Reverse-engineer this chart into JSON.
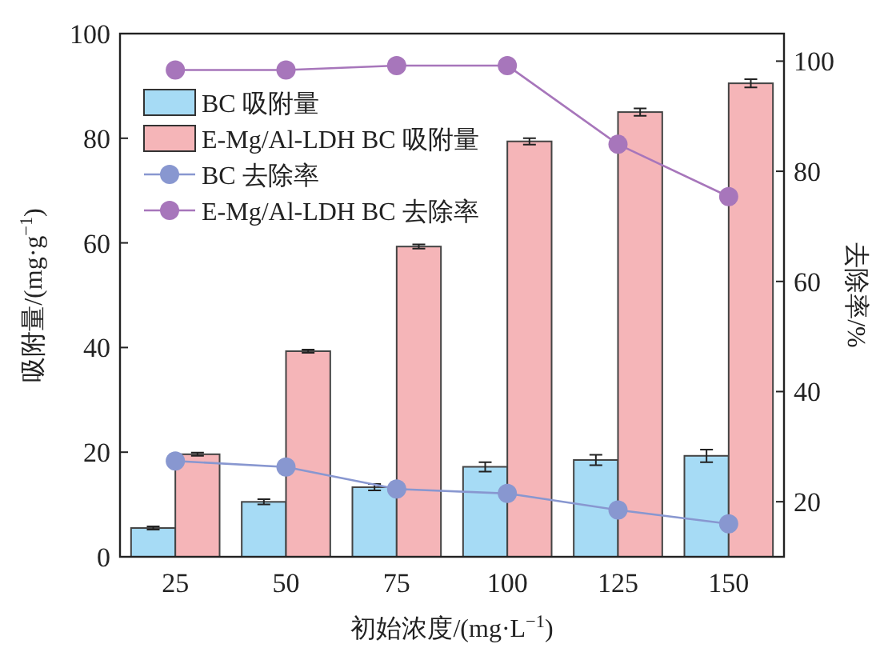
{
  "chart_data": {
    "type": "bar",
    "categories": [
      "25",
      "50",
      "75",
      "100",
      "125",
      "150"
    ],
    "xlabel": "初始浓度/(mg·L$^{−1}$)",
    "ylabel": "吸附量/(mg·g$^{−1}$)",
    "y2label": "去除率/%",
    "ylim": [
      0,
      100
    ],
    "yticks": [
      0,
      20,
      40,
      60,
      80,
      100
    ],
    "y2lim": [
      10,
      105
    ],
    "y2ticks": [
      20,
      40,
      60,
      80,
      100
    ],
    "legend": "top left",
    "marker": "circle",
    "series": [
      {
        "name": "BC 吸附量",
        "color": "#a6dbf5",
        "values": [
          5.5,
          10.5,
          13.3,
          17.2,
          18.5,
          19.3
        ],
        "errors": [
          0.3,
          0.5,
          0.6,
          0.9,
          1.0,
          1.2
        ]
      },
      {
        "name": "E-Mg/Al-LDH BC 吸附量",
        "color": "#f5b5b8",
        "values": [
          19.6,
          39.3,
          59.3,
          79.4,
          85.0,
          90.5
        ],
        "errors": [
          0.3,
          0.3,
          0.4,
          0.6,
          0.7,
          0.8
        ]
      },
      {
        "name": "BC 去除率",
        "type": "line",
        "axis": "y2",
        "color": "#8897d0",
        "values": [
          27.4,
          26.3,
          22.3,
          21.5,
          18.5,
          16.0
        ]
      },
      {
        "name": "E-Mg/Al-LDH BC 去除率",
        "type": "line",
        "axis": "y2",
        "color": "#a776bb",
        "values": [
          98.4,
          98.4,
          99.2,
          99.2,
          84.9,
          75.4
        ]
      }
    ]
  }
}
